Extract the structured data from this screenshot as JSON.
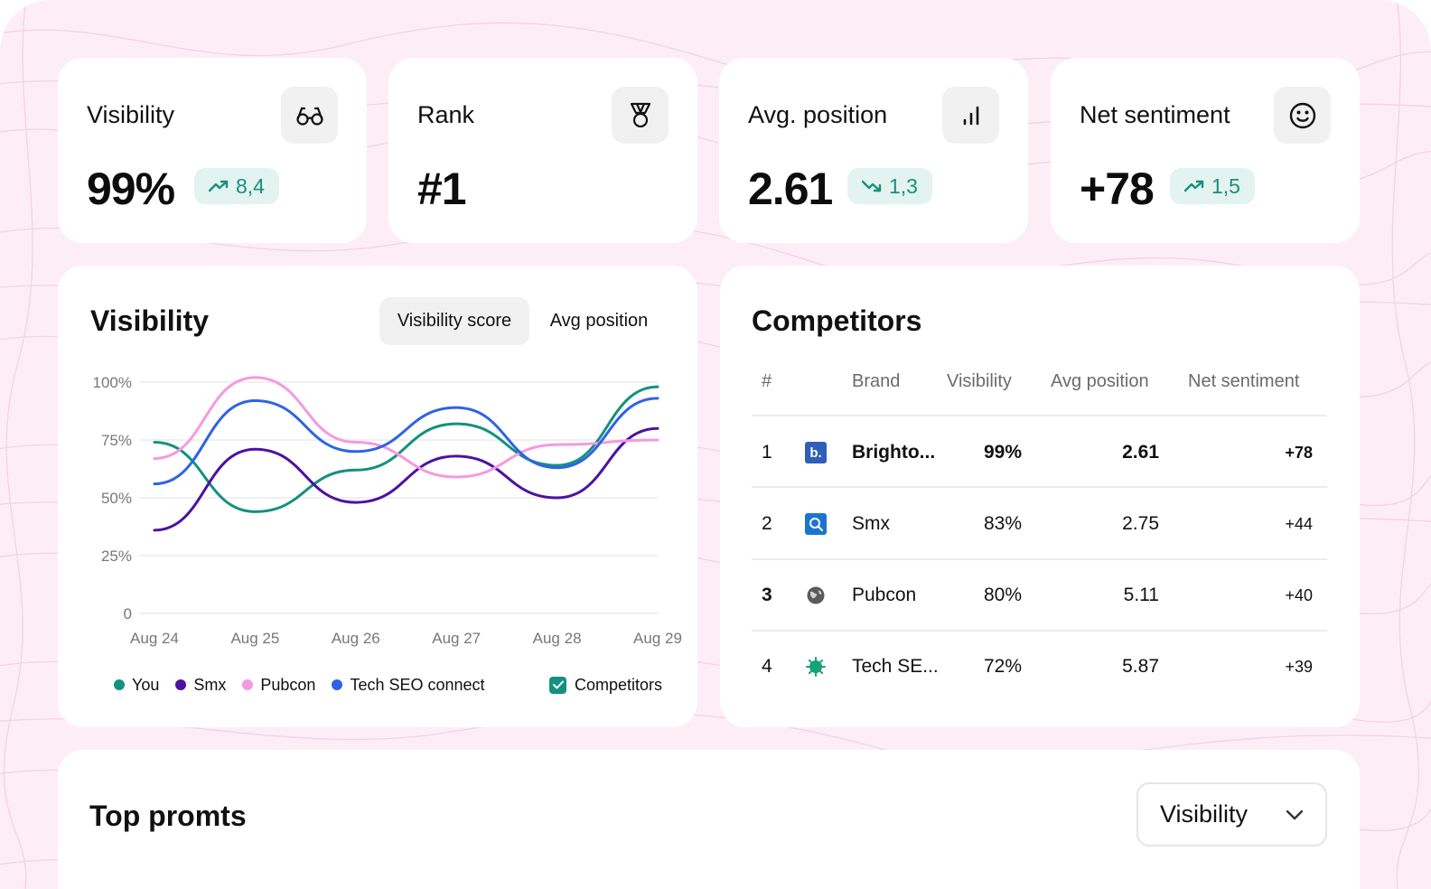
{
  "kpis": [
    {
      "title": "Visibility",
      "value": "99%",
      "badge": "8,4",
      "trend": "up",
      "icon": "glasses-icon"
    },
    {
      "title": "Rank",
      "value": "#1",
      "icon": "medal-icon"
    },
    {
      "title": "Avg. position",
      "value": "2.61",
      "badge": "1,3",
      "trend": "down",
      "icon": "bar-chart-icon"
    },
    {
      "title": "Net sentiment",
      "value": "+78",
      "badge": "1,5",
      "trend": "up",
      "icon": "smiley-icon"
    }
  ],
  "visibility_panel": {
    "title": "Visibility",
    "tabs": [
      "Visibility score",
      "Avg position"
    ],
    "active_tab": "Visibility score",
    "legend": [
      "You",
      "Smx",
      "Pubcon",
      "Tech SEO connect"
    ],
    "competitors_toggle": {
      "label": "Competitors",
      "checked": true
    }
  },
  "chart_data": {
    "type": "line",
    "x": [
      "Aug 24",
      "Aug 25",
      "Aug 26",
      "Aug 27",
      "Aug 28",
      "Aug 29"
    ],
    "yticks": [
      "100%",
      "75%",
      "50%",
      "25%",
      "0"
    ],
    "ylim": [
      0,
      100
    ],
    "grid": true,
    "series": [
      {
        "name": "You",
        "color": "#14917f",
        "values": [
          74,
          44,
          62,
          82,
          64,
          98
        ]
      },
      {
        "name": "Smx",
        "color": "#4b13a0",
        "values": [
          36,
          71,
          48,
          68,
          50,
          80
        ]
      },
      {
        "name": "Pubcon",
        "color": "#f59adf",
        "values": [
          67,
          102,
          74,
          59,
          73,
          75
        ]
      },
      {
        "name": "Tech SEO connect",
        "color": "#2f63e6",
        "values": [
          56,
          92,
          70,
          89,
          63,
          93
        ]
      }
    ]
  },
  "competitors": {
    "title": "Competitors",
    "headers": [
      "#",
      "Brand",
      "Visibility",
      "Avg position",
      "Net sentiment"
    ],
    "rows": [
      {
        "rank": "1",
        "brand": "Brighto...",
        "visibility": "99%",
        "avg_position": "2.61",
        "sentiment": "+78",
        "logo": "b.",
        "logo_bg": "#2f5fb8",
        "icon": "brightonseo-logo-icon",
        "bold": true
      },
      {
        "rank": "2",
        "brand": "Smx",
        "visibility": "83%",
        "avg_position": "2.75",
        "sentiment": "+44",
        "logo": "",
        "logo_bg": "#1c74d0",
        "icon": "smx-logo-icon",
        "bold": false
      },
      {
        "rank": "3",
        "brand": "Pubcon",
        "visibility": "80%",
        "avg_position": "5.11",
        "sentiment": "+40",
        "logo": "",
        "logo_bg": "#5a5a5a",
        "icon": "globe-icon",
        "bold": false
      },
      {
        "rank": "4",
        "brand": "Tech SE...",
        "visibility": "72%",
        "avg_position": "5.87",
        "sentiment": "+39",
        "logo": "",
        "logo_bg": "#17a37a",
        "icon": "virus-logo-icon",
        "bold": false
      }
    ]
  },
  "top_prompts": {
    "title": "Top promts",
    "dropdown_value": "Visibility"
  },
  "colors": {
    "accent_green": "#17907a",
    "badge_bg": "#e3f3ef",
    "background_pink": "#fdeef6"
  }
}
